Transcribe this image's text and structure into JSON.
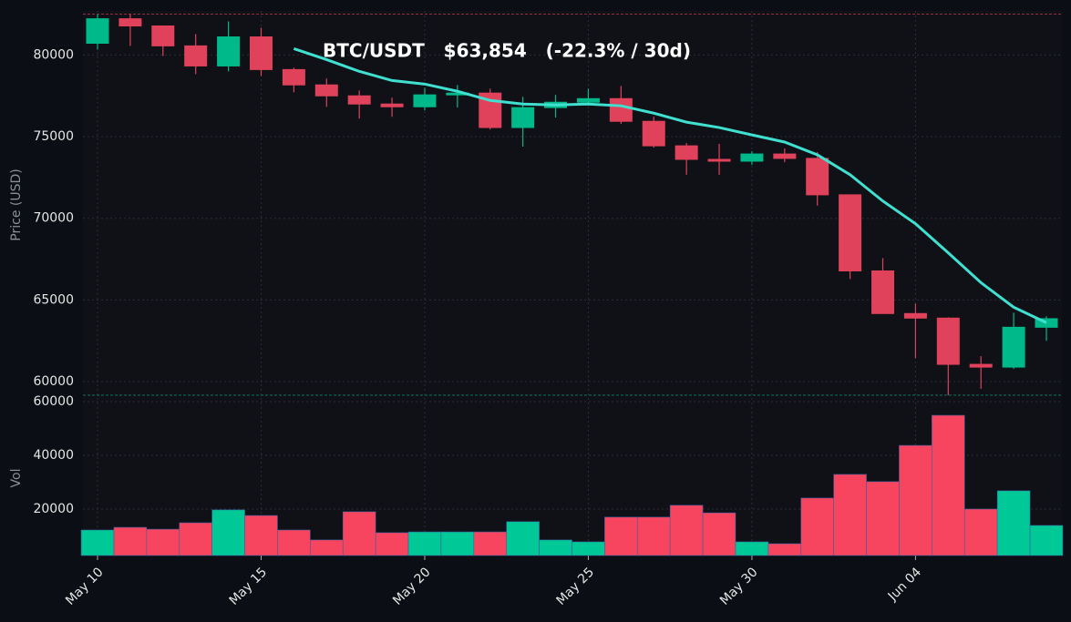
{
  "chart_data": {
    "type": "candlestick",
    "title": "BTC/USDT   $63,854   (-22.3% / 30d)",
    "y_label": "Price (USD)",
    "volume_label": "Vol",
    "categories": [
      "May 10",
      null,
      null,
      null,
      null,
      "May 15",
      null,
      null,
      null,
      null,
      "May 20",
      null,
      null,
      null,
      null,
      "May 25",
      null,
      null,
      null,
      null,
      "May 30",
      null,
      null,
      null,
      null,
      "Jun 04",
      null,
      null,
      null,
      null
    ],
    "open": [
      80720,
      82220,
      81780,
      80560,
      79330,
      81110,
      79110,
      78170,
      77500,
      77000,
      76830,
      77560,
      77670,
      75560,
      76780,
      77110,
      77330,
      75940,
      74440,
      73610,
      73500,
      73940,
      73670,
      71440,
      66780,
      64170,
      63890,
      61060,
      60890,
      63330
    ],
    "high": [
      82500,
      82500,
      81780,
      81280,
      82060,
      81670,
      79220,
      78560,
      77830,
      77390,
      78000,
      78170,
      77940,
      77440,
      77560,
      77940,
      78110,
      76220,
      74610,
      74560,
      74110,
      74280,
      74060,
      71440,
      67560,
      64780,
      63940,
      61560,
      64220,
      64000
    ],
    "low": [
      80330,
      80560,
      79940,
      78830,
      79000,
      78720,
      77720,
      76830,
      76110,
      76220,
      76610,
      76780,
      75440,
      74390,
      76170,
      76940,
      75780,
      74330,
      72670,
      72670,
      73280,
      73440,
      70780,
      66280,
      64170,
      61440,
      59170,
      59560,
      60780,
      62500
    ],
    "close": [
      82220,
      81780,
      80560,
      79330,
      81110,
      79110,
      78170,
      77500,
      77000,
      76830,
      77560,
      77670,
      75560,
      76780,
      77110,
      77330,
      75940,
      74440,
      73610,
      73500,
      73940,
      73670,
      71440,
      66780,
      64170,
      63890,
      61060,
      60890,
      63330,
      63854
    ],
    "ma_values": [
      null,
      null,
      null,
      null,
      null,
      null,
      80390,
      79720,
      79000,
      78440,
      78220,
      77780,
      77220,
      77000,
      76940,
      77000,
      76890,
      76440,
      75890,
      75560,
      75110,
      74670,
      73890,
      72670,
      71060,
      69670,
      67890,
      66060,
      64560,
      63610
    ],
    "ma_color": "#40e0d0",
    "volume": [
      12200,
      13200,
      12500,
      14900,
      19700,
      17600,
      12200,
      8500,
      19000,
      11200,
      11500,
      11500,
      11500,
      15300,
      8500,
      7800,
      17000,
      17000,
      21400,
      18600,
      7800,
      7100,
      24100,
      32900,
      30200,
      43700,
      54900,
      20000,
      26800,
      13900
    ],
    "up_color": "#00b98a",
    "down_color": "#e0425b",
    "volume_up_color": "#00c896",
    "volume_down_color": "#f7455f",
    "ylim": [
      59000,
      82700
    ],
    "yticks": [
      60000,
      65000,
      70000,
      75000,
      80000
    ],
    "volume_ylim": [
      2700,
      61350
    ],
    "volume_yticks": [
      20000,
      40000,
      60000
    ],
    "grid": true
  }
}
